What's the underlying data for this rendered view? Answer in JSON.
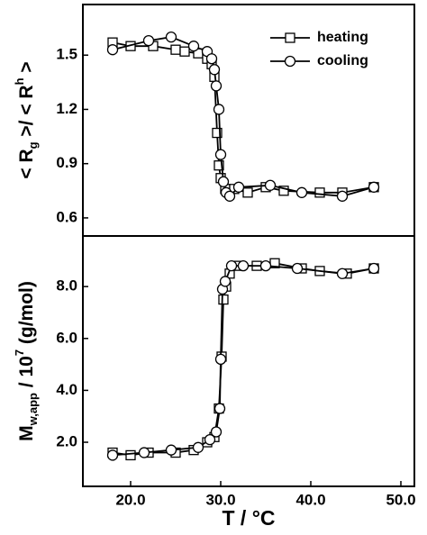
{
  "chart_data": [
    {
      "type": "line",
      "ylabel": [
        "< R",
        "g",
        " >/ < R",
        "h",
        " >"
      ],
      "xlim": [
        14.7,
        51.5
      ],
      "ylim": [
        0.5,
        1.78
      ],
      "yticks": [
        0.6,
        0.9,
        1.2,
        1.5
      ],
      "legend": "upper right",
      "series": [
        {
          "name": "heating",
          "color": "#000000",
          "marker": "square",
          "x": [
            18,
            20,
            22.5,
            25,
            26,
            27.5,
            28.5,
            29,
            29.3,
            29.6,
            29.8,
            30,
            30.5,
            31.5,
            33,
            35,
            37,
            41,
            43.5,
            47
          ],
          "values": [
            1.57,
            1.55,
            1.55,
            1.53,
            1.52,
            1.51,
            1.48,
            1.45,
            1.38,
            1.07,
            0.89,
            0.82,
            0.76,
            0.76,
            0.74,
            0.77,
            0.75,
            0.74,
            0.74,
            0.77
          ]
        },
        {
          "name": "cooling",
          "color": "#000000",
          "marker": "circle",
          "x": [
            18,
            22,
            24.5,
            27,
            28.5,
            29,
            29.3,
            29.5,
            29.8,
            30,
            30.3,
            30.6,
            31,
            32,
            35.5,
            39,
            43.5,
            47
          ],
          "values": [
            1.53,
            1.58,
            1.6,
            1.55,
            1.52,
            1.48,
            1.42,
            1.33,
            1.2,
            0.95,
            0.8,
            0.74,
            0.72,
            0.77,
            0.78,
            0.74,
            0.72,
            0.77
          ]
        }
      ]
    },
    {
      "type": "line",
      "ylabel": [
        "M",
        "w,app",
        " / 10",
        "7",
        " (g/mol)"
      ],
      "xlabel": "T / °C",
      "xlim": [
        14.7,
        51.5
      ],
      "xticks": [
        {
          "value": 20,
          "label": "20.0"
        },
        {
          "value": 30,
          "label": "30.0"
        },
        {
          "value": 40,
          "label": "40.0"
        },
        {
          "value": 50,
          "label": "50.0"
        }
      ],
      "ylim": [
        0.3,
        9.95
      ],
      "yticks": [
        {
          "value": 2,
          "label": "2.0"
        },
        {
          "value": 4,
          "label": "4.0"
        },
        {
          "value": 6,
          "label": "6.0"
        },
        {
          "value": 8,
          "label": "8.0"
        }
      ],
      "series": [
        {
          "color": "#000000",
          "marker": "square",
          "x": [
            18,
            20,
            22,
            25,
            27,
            28.5,
            29.3,
            29.8,
            30.1,
            30.3,
            30.6,
            31,
            32,
            34,
            36,
            39,
            41,
            44,
            47
          ],
          "values": [
            1.6,
            1.5,
            1.6,
            1.6,
            1.7,
            2.0,
            2.2,
            3.3,
            5.3,
            7.5,
            8.0,
            8.5,
            8.8,
            8.8,
            8.9,
            8.7,
            8.6,
            8.5,
            8.7
          ]
        },
        {
          "color": "#000000",
          "marker": "circle",
          "x": [
            18,
            21.5,
            24.5,
            27.5,
            28.8,
            29.5,
            29.9,
            30,
            30.2,
            30.5,
            31.2,
            32.5,
            35,
            38.5,
            43.5,
            47
          ],
          "values": [
            1.5,
            1.6,
            1.7,
            1.8,
            2.1,
            2.4,
            3.3,
            5.2,
            7.9,
            8.2,
            8.8,
            8.8,
            8.8,
            8.7,
            8.5,
            8.7
          ]
        }
      ]
    }
  ]
}
